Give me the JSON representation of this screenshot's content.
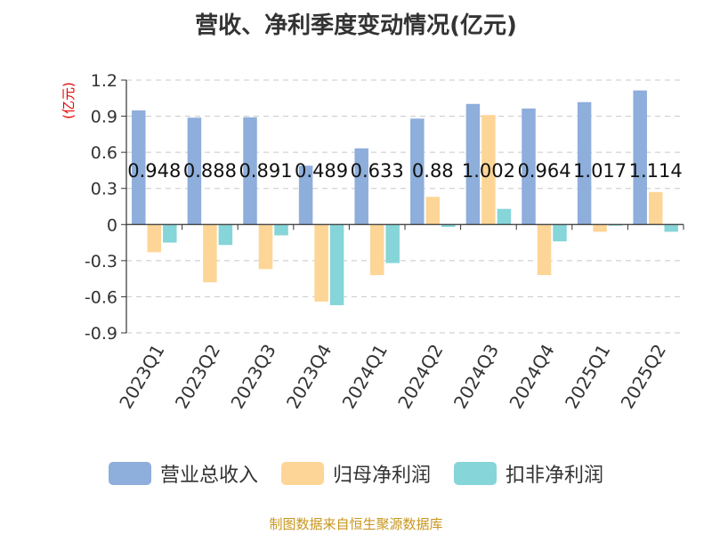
{
  "chart_data": {
    "type": "bar",
    "title": "营收、净利季度变动情况(亿元)",
    "ylabel": "(亿元)",
    "xlabel": "",
    "ylim": [
      -0.9,
      1.2
    ],
    "yticks": [
      1.2,
      0.9,
      0.6,
      0.3,
      0,
      -0.3,
      -0.6,
      -0.9
    ],
    "ytick_labels": [
      "1.2",
      "0.9",
      "0.6",
      "0.3",
      "0",
      "-0.3",
      "-0.6",
      "-0.9"
    ],
    "grid": true,
    "legend_position": "bottom",
    "categories": [
      "2023Q1",
      "2023Q2",
      "2023Q3",
      "2023Q4",
      "2024Q1",
      "2024Q2",
      "2024Q3",
      "2024Q4",
      "2025Q1",
      "2025Q2"
    ],
    "series": [
      {
        "name": "营业总收入",
        "color": "#8eaedb",
        "values": [
          0.948,
          0.888,
          0.891,
          0.489,
          0.633,
          0.88,
          1.002,
          0.964,
          1.017,
          1.114
        ]
      },
      {
        "name": "归母净利润",
        "color": "#fdd596",
        "values": [
          -0.23,
          -0.48,
          -0.37,
          -0.64,
          -0.42,
          0.23,
          0.91,
          -0.42,
          -0.06,
          0.27
        ]
      },
      {
        "name": "扣非净利润",
        "color": "#86d5d8",
        "values": [
          -0.15,
          -0.17,
          -0.09,
          -0.67,
          -0.32,
          -0.02,
          0.13,
          -0.14,
          -0.01,
          -0.06
        ]
      }
    ],
    "data_labels": [
      "0.948",
      "0.888",
      "0.891",
      "0.489",
      "0.633",
      "0.88",
      "1.002",
      "0.964",
      "1.017",
      "1.114"
    ]
  },
  "source": "制图数据来自恒生聚源数据库"
}
